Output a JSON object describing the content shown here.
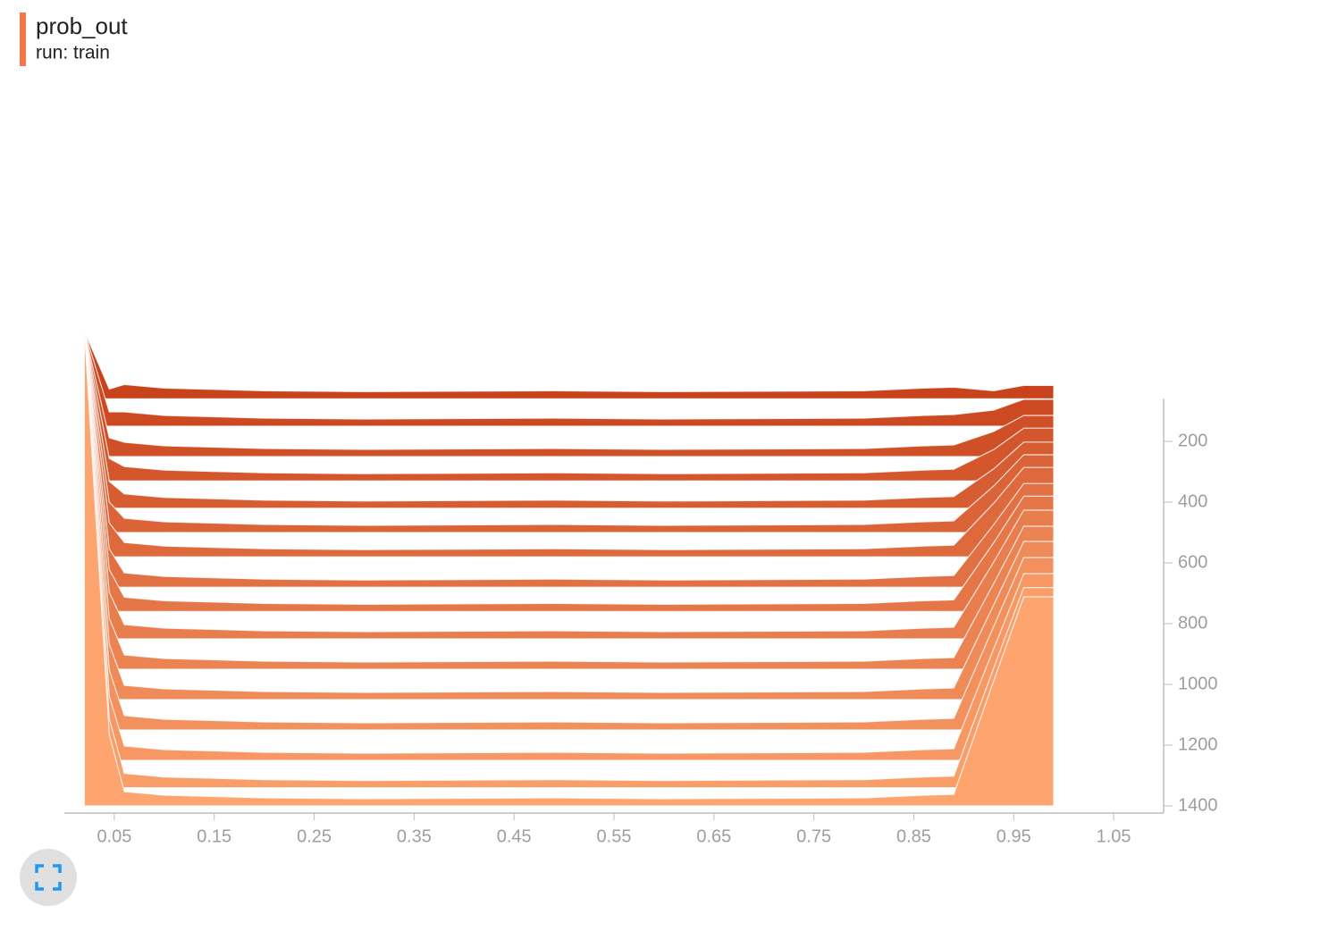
{
  "chart_data": {
    "type": "histogram_offset",
    "title": "prob_out",
    "subtitle": "run: train",
    "x": [
      0.02,
      0.045,
      0.06,
      0.1,
      0.2,
      0.3,
      0.49,
      0.6,
      0.8,
      0.86,
      0.89,
      0.93,
      0.96,
      0.99
    ],
    "xlim": [
      0,
      1.1
    ],
    "xticks": [
      0.05,
      0.15,
      0.25,
      0.35,
      0.45,
      0.55,
      0.65,
      0.75,
      0.85,
      0.95,
      1.05
    ],
    "ylim": [
      60,
      1400
    ],
    "yticks": [
      200,
      400,
      600,
      800,
      1000,
      1200,
      1400
    ],
    "colors": [
      "#c8421c",
      "#fda46f"
    ],
    "series": [
      {
        "step": 60,
        "values": [
          76,
          11,
          16,
          12,
          9,
          8,
          9,
          8,
          9,
          12,
          13,
          9,
          15,
          15
        ]
      },
      {
        "step": 150,
        "values": [
          107,
          16,
          16,
          12,
          9,
          8,
          9,
          8,
          9,
          12,
          13,
          18,
          30,
          30
        ]
      },
      {
        "step": 250,
        "values": [
          141,
          21,
          16,
          12,
          9,
          8,
          9,
          8,
          9,
          12,
          13,
          28,
          46,
          46
        ]
      },
      {
        "step": 330,
        "values": [
          168,
          25,
          16,
          12,
          9,
          8,
          9,
          8,
          9,
          12,
          13,
          35,
          59,
          59
        ]
      },
      {
        "step": 420,
        "values": [
          199,
          30,
          16,
          12,
          9,
          8,
          9,
          8,
          9,
          12,
          13,
          44,
          74,
          74
        ]
      },
      {
        "step": 500,
        "values": [
          226,
          34,
          16,
          12,
          9,
          8,
          9,
          8,
          9,
          12,
          13,
          52,
          87,
          87
        ]
      },
      {
        "step": 580,
        "values": [
          253,
          38,
          16,
          12,
          9,
          8,
          9,
          8,
          9,
          12,
          13,
          60,
          100,
          100
        ]
      },
      {
        "step": 680,
        "values": [
          287,
          43,
          16,
          12,
          9,
          8,
          9,
          8,
          9,
          12,
          13,
          70,
          116,
          116
        ]
      },
      {
        "step": 760,
        "values": [
          314,
          47,
          16,
          12,
          9,
          8,
          9,
          8,
          9,
          12,
          13,
          77,
          129,
          129
        ]
      },
      {
        "step": 850,
        "values": [
          345,
          52,
          16,
          12,
          9,
          8,
          9,
          8,
          9,
          12,
          13,
          86,
          144,
          144
        ]
      },
      {
        "step": 950,
        "values": [
          379,
          57,
          16,
          12,
          9,
          8,
          9,
          8,
          9,
          12,
          13,
          96,
          160,
          160
        ]
      },
      {
        "step": 1050,
        "values": [
          413,
          62,
          16,
          12,
          9,
          8,
          9,
          8,
          9,
          12,
          13,
          106,
          177,
          177
        ]
      },
      {
        "step": 1150,
        "values": [
          447,
          67,
          16,
          12,
          9,
          8,
          9,
          8,
          9,
          12,
          13,
          116,
          193,
          193
        ]
      },
      {
        "step": 1250,
        "values": [
          481,
          72,
          16,
          12,
          9,
          8,
          9,
          8,
          9,
          12,
          13,
          125,
          209,
          209
        ]
      },
      {
        "step": 1340,
        "values": [
          512,
          77,
          16,
          12,
          9,
          8,
          9,
          8,
          9,
          12,
          13,
          134,
          224,
          224
        ]
      },
      {
        "step": 1400,
        "values": [
          532,
          80,
          16,
          12,
          9,
          8,
          9,
          8,
          9,
          12,
          13,
          140,
          234,
          234
        ]
      }
    ]
  }
}
